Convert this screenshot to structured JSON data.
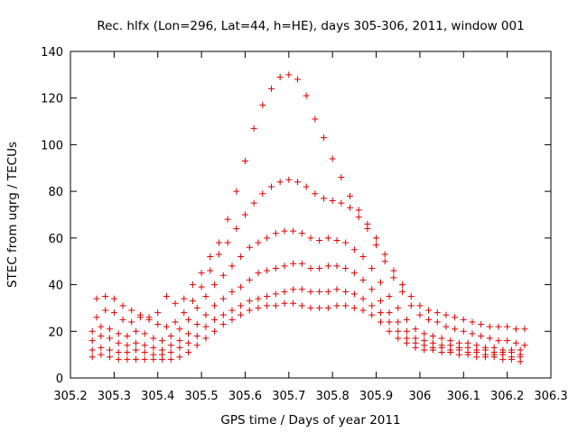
{
  "chart_data": {
    "type": "scatter",
    "title": "Rec. hlfx (Lon=296, Lat=44, h=HE), days 305-306, 2011, window 001",
    "xlabel": "GPS time / Days of year 2011",
    "ylabel": "STEC from uqrg / TECUs",
    "xlim": [
      305.2,
      306.3
    ],
    "ylim": [
      0,
      140
    ],
    "xticks": [
      "305.2",
      "305.3",
      "305.4",
      "305.5",
      "305.6",
      "305.7",
      "305.8",
      "305.9",
      "306",
      "306.1",
      "306.2",
      "306.3"
    ],
    "yticks": [
      "0",
      "20",
      "40",
      "60",
      "80",
      "100",
      "120",
      "140"
    ],
    "marker": "+",
    "color": "#dd0000",
    "grid": false,
    "legend": "none",
    "series": [
      {
        "x": [
          305.25,
          305.27,
          305.29,
          305.31,
          305.33,
          305.35,
          305.37,
          305.39,
          305.41,
          305.43,
          305.45,
          305.47,
          305.49,
          305.51,
          305.53,
          305.55,
          305.57,
          305.59,
          305.61,
          305.63,
          305.65,
          305.67,
          305.69,
          305.71,
          305.73,
          305.75,
          305.77,
          305.79,
          305.81,
          305.83,
          305.85,
          305.87,
          305.89,
          305.91,
          305.93,
          305.95,
          305.97,
          305.99,
          306.01,
          306.03,
          306.05,
          306.07,
          306.09,
          306.11,
          306.13,
          306.15,
          306.17,
          306.19,
          306.21,
          306.23
        ],
        "y": [
          9,
          10,
          9,
          8,
          8,
          8,
          8,
          8,
          8,
          8,
          9,
          11,
          14,
          17,
          20,
          23,
          25,
          27,
          29,
          30,
          31,
          31,
          32,
          32,
          31,
          30,
          30,
          30,
          31,
          31,
          30,
          29,
          27,
          24,
          20,
          17,
          15,
          13,
          12,
          12,
          11,
          11,
          10,
          10,
          9,
          9,
          9,
          8,
          8,
          7
        ]
      },
      {
        "x": [
          305.25,
          305.27,
          305.29,
          305.31,
          305.33,
          305.35,
          305.37,
          305.39,
          305.41,
          305.43,
          305.45,
          305.47,
          305.49,
          305.51,
          305.53,
          305.55,
          305.57,
          305.59,
          305.61,
          305.63,
          305.65,
          305.67,
          305.69,
          305.71,
          305.73,
          305.75,
          305.77,
          305.79,
          305.81,
          305.83,
          305.85,
          305.87,
          305.89,
          305.91,
          305.93,
          305.95,
          305.97,
          305.99,
          306.01,
          306.03,
          306.05,
          306.07,
          306.09,
          306.11,
          306.13,
          306.15,
          306.17,
          306.19,
          306.21,
          306.23
        ],
        "y": [
          12,
          13,
          12,
          11,
          11,
          12,
          11,
          10,
          10,
          11,
          13,
          15,
          18,
          22,
          25,
          27,
          29,
          31,
          33,
          34,
          35,
          36,
          37,
          38,
          38,
          37,
          37,
          37,
          38,
          37,
          36,
          34,
          31,
          28,
          24,
          20,
          17,
          15,
          14,
          13,
          13,
          12,
          12,
          11,
          11,
          10,
          10,
          10,
          9,
          9
        ]
      },
      {
        "x": [
          305.25,
          305.27,
          305.29,
          305.31,
          305.33,
          305.35,
          305.37,
          305.39,
          305.41,
          305.43,
          305.45,
          305.47,
          305.49,
          305.51,
          305.53,
          305.55,
          305.57,
          305.59,
          305.61,
          305.63,
          305.65,
          305.67,
          305.69,
          305.71,
          305.73,
          305.75,
          305.77,
          305.79,
          305.81,
          305.83,
          305.85,
          305.87,
          305.89,
          305.91,
          305.93,
          305.95,
          305.97,
          305.99,
          306.01,
          306.03,
          306.05,
          306.07,
          306.09,
          306.11,
          306.13,
          306.15,
          306.17,
          306.19,
          306.21,
          306.23
        ],
        "y": [
          16,
          18,
          17,
          15,
          14,
          15,
          14,
          13,
          12,
          14,
          16,
          19,
          23,
          27,
          31,
          34,
          37,
          39,
          42,
          45,
          46,
          47,
          48,
          49,
          49,
          47,
          47,
          48,
          48,
          47,
          45,
          42,
          38,
          33,
          28,
          24,
          20,
          17,
          16,
          15,
          14,
          14,
          13,
          13,
          12,
          12,
          11,
          11,
          11,
          10
        ]
      },
      {
        "x": [
          305.25,
          305.27,
          305.29,
          305.31,
          305.33,
          305.35,
          305.37,
          305.39,
          305.41,
          305.43,
          305.45,
          305.47,
          305.49,
          305.51,
          305.53,
          305.55,
          305.57,
          305.59,
          305.61,
          305.63,
          305.65,
          305.67,
          305.69,
          305.71,
          305.73,
          305.75,
          305.77,
          305.79,
          305.81,
          305.83,
          305.85,
          305.87,
          305.89,
          305.91,
          305.93,
          305.95,
          305.97,
          305.99,
          306.01,
          306.03,
          306.05,
          306.07,
          306.09,
          306.11,
          306.13,
          306.15,
          306.17,
          306.19,
          306.21,
          306.23
        ],
        "y": [
          20,
          22,
          21,
          19,
          18,
          20,
          19,
          17,
          16,
          18,
          21,
          25,
          30,
          35,
          40,
          44,
          48,
          52,
          56,
          58,
          60,
          62,
          63,
          63,
          62,
          60,
          59,
          60,
          59,
          58,
          55,
          52,
          47,
          41,
          35,
          30,
          25,
          21,
          19,
          18,
          17,
          16,
          15,
          15,
          14,
          13,
          13,
          12,
          12,
          12
        ]
      },
      {
        "x": [
          305.26,
          305.28,
          305.3,
          305.32,
          305.34,
          305.36,
          305.38,
          305.4,
          305.42,
          305.44,
          305.46,
          305.48,
          305.5,
          305.52,
          305.54,
          305.56,
          305.58,
          305.6,
          305.62,
          305.64,
          305.66,
          305.68,
          305.7,
          305.72,
          305.74,
          305.76,
          305.78,
          305.8,
          305.82,
          305.84,
          305.86,
          305.88,
          305.9,
          305.92,
          305.94,
          305.96,
          305.98,
          306.0,
          306.02,
          306.04,
          306.06,
          306.08,
          306.1,
          306.12,
          306.14,
          306.16,
          306.18,
          306.2,
          306.22,
          306.24
        ],
        "y": [
          26,
          29,
          28,
          25,
          24,
          26,
          25,
          23,
          22,
          24,
          28,
          33,
          39,
          46,
          53,
          58,
          64,
          70,
          75,
          79,
          82,
          84,
          85,
          84,
          82,
          79,
          77,
          76,
          75,
          73,
          69,
          64,
          57,
          50,
          43,
          37,
          31,
          27,
          25,
          24,
          22,
          21,
          20,
          19,
          18,
          17,
          16,
          16,
          15,
          14
        ]
      },
      {
        "x": [
          305.26,
          305.28,
          305.3,
          305.32,
          305.34,
          305.36,
          305.38,
          305.4,
          305.42,
          305.44,
          305.46,
          305.48,
          305.5,
          305.52,
          305.54,
          305.56,
          305.58,
          305.6,
          305.62,
          305.64,
          305.66,
          305.68,
          305.7,
          305.72,
          305.74,
          305.76,
          305.78,
          305.8,
          305.82,
          305.84,
          305.86,
          305.88,
          305.9,
          305.92,
          305.94,
          305.96,
          305.98,
          306.0,
          306.02,
          306.04,
          306.06,
          306.08,
          306.1,
          306.12,
          306.14,
          306.16,
          306.18,
          306.2,
          306.22,
          306.24
        ],
        "y": [
          34,
          35,
          34,
          31,
          29,
          27,
          26,
          28,
          35,
          32,
          34,
          40,
          45,
          52,
          58,
          68,
          80,
          93,
          107,
          117,
          124,
          129,
          130,
          128,
          121,
          111,
          103,
          94,
          86,
          78,
          72,
          66,
          60,
          53,
          46,
          40,
          35,
          31,
          29,
          28,
          27,
          26,
          25,
          24,
          23,
          22,
          22,
          22,
          21,
          21
        ]
      }
    ]
  }
}
